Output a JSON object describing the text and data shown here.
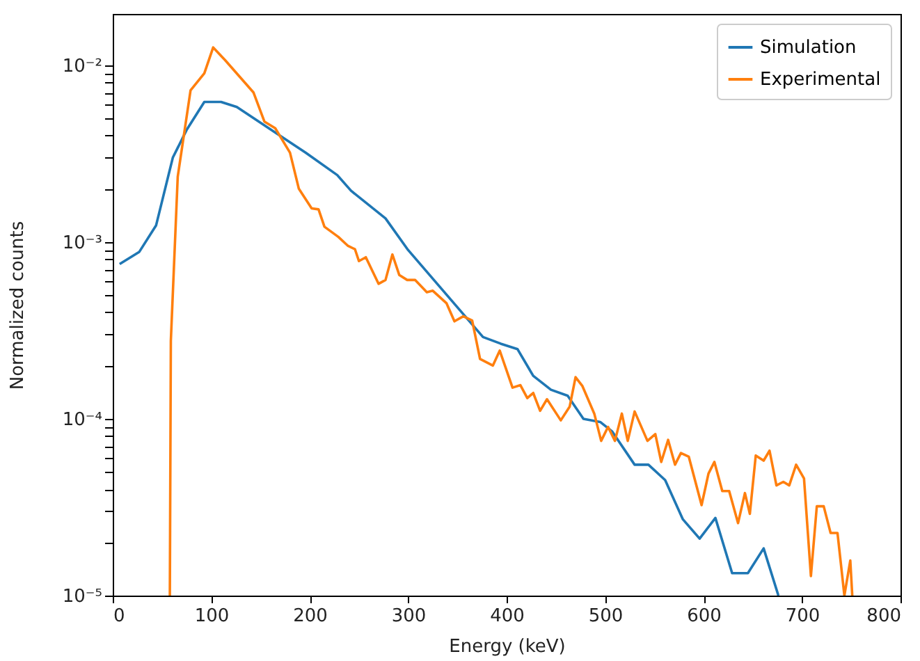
{
  "chart_data": {
    "type": "line",
    "xlabel": "Energy (keV)",
    "ylabel": "Normalized counts",
    "log": "y",
    "legend": "top right",
    "xlim": [
      0,
      800
    ],
    "xticks": [
      0,
      100,
      200,
      300,
      400,
      500,
      600,
      700,
      800
    ],
    "ylim": [
      1e-05,
      0.0195
    ],
    "yticks": [
      {
        "value": 1e-05,
        "label": "10⁻⁵"
      },
      {
        "value": 2e-05,
        "label": null
      },
      {
        "value": 3e-05,
        "label": null
      },
      {
        "value": 4e-05,
        "label": null
      },
      {
        "value": 5e-05,
        "label": null
      },
      {
        "value": 6e-05,
        "label": null
      },
      {
        "value": 7e-05,
        "label": null
      },
      {
        "value": 8e-05,
        "label": null
      },
      {
        "value": 9e-05,
        "label": null
      },
      {
        "value": 0.0001,
        "label": "10⁻⁴"
      },
      {
        "value": 0.0002,
        "label": null
      },
      {
        "value": 0.0003,
        "label": null
      },
      {
        "value": 0.0004,
        "label": null
      },
      {
        "value": 0.0005,
        "label": null
      },
      {
        "value": 0.0006,
        "label": null
      },
      {
        "value": 0.0007,
        "label": null
      },
      {
        "value": 0.0008,
        "label": null
      },
      {
        "value": 0.0009,
        "label": null
      },
      {
        "value": 0.001,
        "label": "10⁻³"
      },
      {
        "value": 0.002,
        "label": null
      },
      {
        "value": 0.003,
        "label": null
      },
      {
        "value": 0.004,
        "label": null
      },
      {
        "value": 0.005,
        "label": null
      },
      {
        "value": 0.006,
        "label": null
      },
      {
        "value": 0.007,
        "label": null
      },
      {
        "value": 0.008,
        "label": null
      },
      {
        "value": 0.009,
        "label": null
      },
      {
        "value": 0.01,
        "label": "10⁻²"
      }
    ],
    "series": [
      {
        "name": "Simulation",
        "color": "#1f77b4",
        "x": [
          7,
          27,
          44,
          61,
          75,
          93,
          110,
          126,
          164,
          196,
          228,
          242,
          277,
          300,
          376,
          394,
          411,
          427,
          445,
          462,
          478,
          495,
          507,
          530,
          544,
          561,
          579,
          596,
          612,
          629,
          645,
          661,
          676
        ],
        "values": [
          0.00075,
          0.00088,
          0.00124,
          0.003,
          0.0043,
          0.0062,
          0.0062,
          0.0058,
          0.0042,
          0.0032,
          0.00239,
          0.00195,
          0.00136,
          0.0009,
          0.00029,
          0.000266,
          0.000248,
          0.000175,
          0.000146,
          0.000135,
          0.0001,
          9.6e-05,
          8.5e-05,
          5.5e-05,
          5.5e-05,
          4.5e-05,
          2.7e-05,
          2.1e-05,
          2.75e-05,
          1.34e-05,
          1.34e-05,
          1.85e-05,
          1e-05
        ]
      },
      {
        "name": "Experimental",
        "color": "#ff7f0e",
        "x": [
          58,
          59,
          66,
          79,
          93,
          102,
          114,
          143,
          154,
          165,
          180,
          189,
          202,
          209,
          215,
          229,
          239,
          246,
          250,
          257,
          270,
          277,
          284,
          291,
          299,
          307,
          319,
          325,
          339,
          347,
          356,
          365,
          373,
          386,
          393,
          406,
          414,
          421,
          427,
          434,
          441,
          455,
          464,
          470,
          477,
          489,
          496,
          503,
          510,
          517,
          523,
          530,
          543,
          551,
          557,
          564,
          571,
          577,
          585,
          598,
          605,
          611,
          619,
          626,
          635,
          642,
          647,
          653,
          661,
          667,
          674,
          681,
          687,
          694,
          702,
          709,
          715,
          722,
          729,
          736,
          743,
          749,
          751
        ],
        "values": [
          1e-05,
          0.000276,
          0.00234,
          0.0072,
          0.009,
          0.0126,
          0.0107,
          0.007,
          0.0048,
          0.0044,
          0.0032,
          0.002,
          0.00155,
          0.00153,
          0.00122,
          0.00107,
          0.00095,
          0.00091,
          0.00078,
          0.00082,
          0.00058,
          0.00061,
          0.00085,
          0.00065,
          0.00061,
          0.00061,
          0.00052,
          0.00053,
          0.00045,
          0.000356,
          0.00038,
          0.00036,
          0.000218,
          0.0002,
          0.000243,
          0.00015,
          0.000155,
          0.000131,
          0.00014,
          0.000111,
          0.000129,
          9.8e-05,
          0.000117,
          0.000172,
          0.000153,
          0.000107,
          7.5e-05,
          9e-05,
          7.5e-05,
          0.000107,
          7.5e-05,
          0.00011,
          7.5e-05,
          8.2e-05,
          5.7e-05,
          7.6e-05,
          5.5e-05,
          6.4e-05,
          6.1e-05,
          3.25e-05,
          4.9e-05,
          5.7e-05,
          3.9e-05,
          3.9e-05,
          2.57e-05,
          3.8e-05,
          2.9e-05,
          6.2e-05,
          5.8e-05,
          6.6e-05,
          4.2e-05,
          4.4e-05,
          4.2e-05,
          5.5e-05,
          4.6e-05,
          1.29e-05,
          3.2e-05,
          3.2e-05,
          2.26e-05,
          2.26e-05,
          1e-05,
          1.58e-05,
          1e-05
        ]
      }
    ]
  }
}
